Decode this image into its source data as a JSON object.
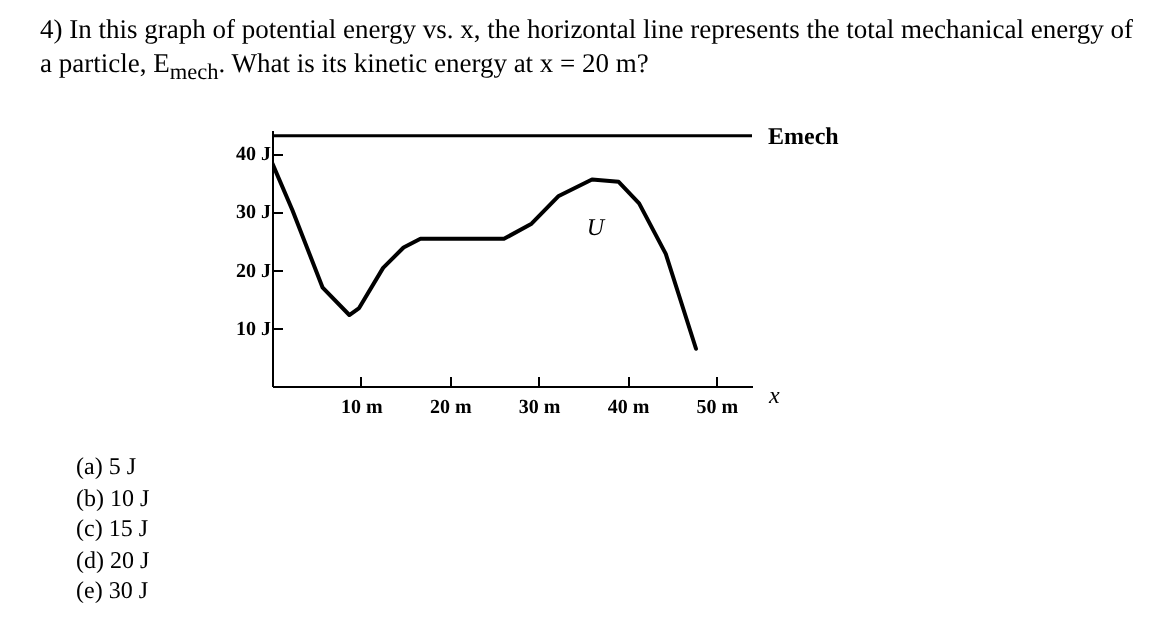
{
  "chart_data": {
    "type": "line",
    "title": "4) In this graph of potential energy vs. x, the horizontal line represents the total mechanical energy of a particle, E$_{mech}$. What is its kinetic energy at x = 20 m?",
    "xlabel": "x",
    "x": [
      0,
      2.3,
      5.7,
      8.7,
      9.8,
      12.5,
      14.8,
      16.7,
      26.1,
      29.2,
      32.2,
      36,
      39,
      41.3,
      44.3,
      47.7
    ],
    "series": [
      {
        "color": "#000000",
        "values": [
          38.4,
          30.2,
          16.9,
          12.2,
          13.4,
          20.3,
          23.8,
          25.3,
          25.3,
          27.9,
          32.6,
          35.5,
          35.1,
          31.4,
          22.7,
          6.4
        ]
      }
    ],
    "xlim": [
      0,
      54
    ],
    "ylim": [
      0,
      44
    ],
    "xticks": [
      {
        "value": 10,
        "label": "10 m"
      },
      {
        "value": 20,
        "label": "20 m"
      },
      {
        "value": 30,
        "label": "30 m"
      },
      {
        "value": 40,
        "label": "40 m"
      },
      {
        "value": 50,
        "label": "50 m"
      }
    ],
    "yticks": [
      {
        "value": 10,
        "label": "10 J"
      },
      {
        "value": 20,
        "label": "20 J"
      },
      {
        "value": 30,
        "label": "30 J"
      },
      {
        "value": 40,
        "label": "40 J"
      }
    ],
    "ref_lines": [
      {
        "axis": "y",
        "value": 43,
        "label": "Emech",
        "color": "#000000"
      }
    ],
    "annotations": [
      "U",
      "(a) 5 J",
      "(b) 10 J",
      "(c) 15 J",
      "(d) 20 J",
      "(e) 30 J"
    ],
    "grid": false,
    "marker": "none",
    "line_style": "solid"
  }
}
